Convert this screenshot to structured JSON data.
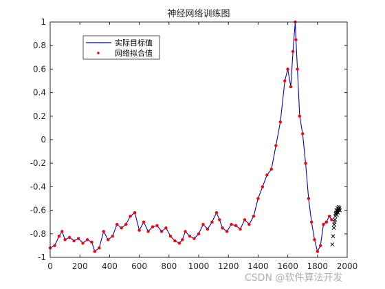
{
  "chart_data": {
    "type": "line",
    "title": "神经网络训练图",
    "xlabel": "",
    "ylabel": "",
    "xlim": [
      0,
      2000
    ],
    "ylim": [
      -1,
      1
    ],
    "xticks": [
      "0",
      "200",
      "400",
      "600",
      "800",
      "1000",
      "1200",
      "1400",
      "1600",
      "1800",
      "2000"
    ],
    "yticks": [
      "-1",
      "-0.8",
      "-0.6",
      "-0.4",
      "-0.2",
      "0",
      "0.2",
      "0.4",
      "0.6",
      "0.8",
      "1"
    ],
    "grid": false,
    "legend_position": "top-left",
    "series": [
      {
        "name": "实际目标值",
        "color": "#0000cc",
        "style": "line",
        "x": [
          0,
          30,
          60,
          80,
          100,
          130,
          160,
          190,
          220,
          250,
          280,
          300,
          330,
          360,
          390,
          420,
          450,
          480,
          510,
          540,
          570,
          600,
          630,
          660,
          690,
          720,
          750,
          780,
          810,
          840,
          870,
          890,
          910,
          940,
          970,
          1000,
          1030,
          1060,
          1090,
          1120,
          1140,
          1160,
          1190,
          1220,
          1250,
          1280,
          1310,
          1340,
          1370,
          1400,
          1430,
          1460,
          1490,
          1520,
          1550,
          1580,
          1600,
          1620,
          1635,
          1650,
          1655,
          1665,
          1680,
          1700,
          1720,
          1740,
          1760,
          1780,
          1800,
          1820,
          1840,
          1860,
          1880,
          1895
        ],
        "y": [
          -0.92,
          -0.9,
          -0.82,
          -0.78,
          -0.85,
          -0.83,
          -0.86,
          -0.84,
          -0.88,
          -0.85,
          -0.87,
          -0.95,
          -0.92,
          -0.78,
          -0.85,
          -0.82,
          -0.72,
          -0.75,
          -0.72,
          -0.65,
          -0.62,
          -0.77,
          -0.7,
          -0.78,
          -0.74,
          -0.73,
          -0.78,
          -0.75,
          -0.82,
          -0.86,
          -0.88,
          -0.85,
          -0.78,
          -0.82,
          -0.84,
          -0.8,
          -0.72,
          -0.76,
          -0.7,
          -0.62,
          -0.68,
          -0.75,
          -0.78,
          -0.72,
          -0.73,
          -0.76,
          -0.68,
          -0.72,
          -0.65,
          -0.5,
          -0.4,
          -0.3,
          -0.25,
          -0.05,
          0.15,
          0.5,
          0.6,
          0.45,
          0.75,
          1.0,
          0.85,
          0.6,
          0.2,
          0.05,
          -0.2,
          -0.5,
          -0.7,
          -0.85,
          -0.95,
          -0.9,
          -0.72,
          -0.7,
          -0.65,
          -0.68
        ]
      },
      {
        "name": "网络拟合值",
        "color": "#ff0000",
        "style": "markers",
        "x": [
          0,
          30,
          60,
          80,
          100,
          130,
          160,
          190,
          220,
          250,
          280,
          300,
          330,
          360,
          390,
          420,
          450,
          480,
          510,
          540,
          570,
          600,
          630,
          660,
          690,
          720,
          750,
          780,
          810,
          840,
          870,
          890,
          910,
          940,
          970,
          1000,
          1030,
          1060,
          1090,
          1120,
          1140,
          1160,
          1190,
          1220,
          1250,
          1280,
          1310,
          1340,
          1370,
          1400,
          1430,
          1460,
          1490,
          1520,
          1550,
          1580,
          1600,
          1620,
          1635,
          1650,
          1655,
          1665,
          1680,
          1700,
          1720,
          1740,
          1760,
          1780,
          1800,
          1820,
          1840,
          1860,
          1880,
          1895
        ],
        "y": [
          -0.92,
          -0.9,
          -0.82,
          -0.78,
          -0.85,
          -0.83,
          -0.86,
          -0.84,
          -0.88,
          -0.85,
          -0.87,
          -0.95,
          -0.92,
          -0.78,
          -0.85,
          -0.82,
          -0.72,
          -0.75,
          -0.72,
          -0.65,
          -0.62,
          -0.77,
          -0.7,
          -0.78,
          -0.74,
          -0.73,
          -0.78,
          -0.75,
          -0.82,
          -0.86,
          -0.88,
          -0.85,
          -0.78,
          -0.82,
          -0.84,
          -0.8,
          -0.72,
          -0.76,
          -0.7,
          -0.62,
          -0.68,
          -0.75,
          -0.78,
          -0.72,
          -0.73,
          -0.76,
          -0.68,
          -0.72,
          -0.65,
          -0.5,
          -0.4,
          -0.3,
          -0.25,
          -0.05,
          0.15,
          0.5,
          0.6,
          0.45,
          0.75,
          1.0,
          0.85,
          0.6,
          0.2,
          0.05,
          -0.2,
          -0.5,
          -0.7,
          -0.85,
          -0.95,
          -0.9,
          -0.72,
          -0.7,
          -0.65,
          -0.68
        ]
      },
      {
        "name": "",
        "color": "#000000",
        "style": "x-markers",
        "x": [
          1900,
          1905,
          1910,
          1912,
          1915,
          1918,
          1920,
          1922,
          1925,
          1928,
          1930,
          1932,
          1935,
          1938,
          1940,
          1942,
          1945,
          1948,
          1950
        ],
        "y": [
          -0.89,
          -0.82,
          -0.75,
          -0.72,
          -0.7,
          -0.68,
          -0.65,
          -0.63,
          -0.62,
          -0.6,
          -0.64,
          -0.6,
          -0.58,
          -0.62,
          -0.6,
          -0.57,
          -0.59,
          -0.58,
          -0.6
        ]
      }
    ]
  },
  "watermark": "CSDN @软件算法开发"
}
